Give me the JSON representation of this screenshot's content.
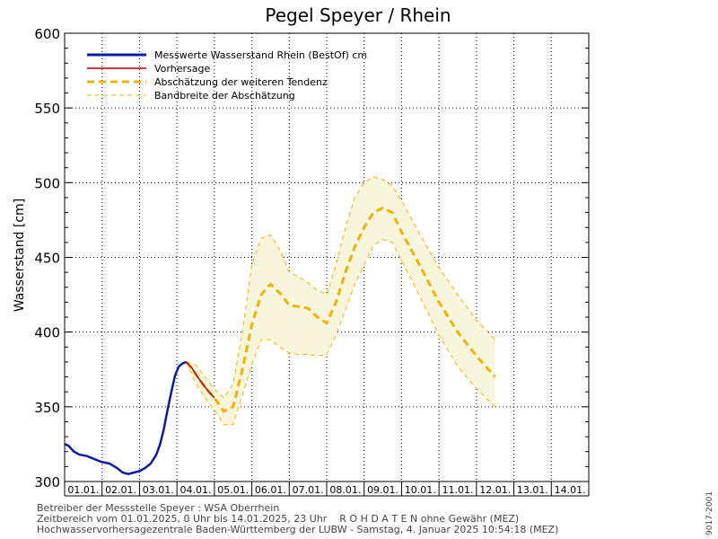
{
  "chart_data": {
    "type": "line",
    "title": "Pegel Speyer / Rhein",
    "ylabel": "Wasserstand [cm]",
    "xlabel": "",
    "ylim": [
      300,
      600
    ],
    "yticks": [
      300,
      350,
      400,
      450,
      500,
      550,
      600
    ],
    "x_range_days": [
      1.0,
      15.0
    ],
    "x_tick_labels": [
      "01.01.",
      "02.01.",
      "03.01.",
      "04.01.",
      "05.01.",
      "06.01.",
      "07.01.",
      "08.01.",
      "09.01.",
      "10.01.",
      "11.01.",
      "12.01.",
      "13.01.",
      "14.01."
    ],
    "grid": true,
    "legend_position": "top-left",
    "series": [
      {
        "name": "Messwerte Wasserstand Rhein (BestOf)  cm",
        "color": "#0a1aa8",
        "style": "solid-thick",
        "points": [
          [
            1.0,
            325
          ],
          [
            1.1,
            324
          ],
          [
            1.25,
            320
          ],
          [
            1.4,
            318
          ],
          [
            1.6,
            317
          ],
          [
            1.8,
            315
          ],
          [
            2.0,
            313
          ],
          [
            2.2,
            312
          ],
          [
            2.4,
            309
          ],
          [
            2.55,
            306
          ],
          [
            2.7,
            305
          ],
          [
            2.85,
            306
          ],
          [
            3.0,
            307
          ],
          [
            3.15,
            309
          ],
          [
            3.3,
            312
          ],
          [
            3.45,
            318
          ],
          [
            3.55,
            325
          ],
          [
            3.65,
            335
          ],
          [
            3.75,
            348
          ],
          [
            3.85,
            360
          ],
          [
            3.95,
            371
          ],
          [
            4.05,
            377
          ],
          [
            4.15,
            379
          ],
          [
            4.25,
            380
          ]
        ]
      },
      {
        "name": "Vorhersage",
        "color": "#b00000",
        "style": "solid",
        "points": [
          [
            4.25,
            380
          ],
          [
            4.4,
            376
          ],
          [
            4.55,
            370
          ],
          [
            4.7,
            365
          ],
          [
            4.85,
            360
          ],
          [
            5.0,
            356
          ]
        ]
      },
      {
        "name": "Abschätzung der weiteren Tendenz",
        "color": "#f0b400",
        "style": "dashed-thick",
        "points": [
          [
            4.25,
            380
          ],
          [
            4.5,
            372
          ],
          [
            4.75,
            363
          ],
          [
            5.0,
            356
          ],
          [
            5.25,
            347
          ],
          [
            5.5,
            350
          ],
          [
            5.75,
            375
          ],
          [
            6.0,
            405
          ],
          [
            6.25,
            425
          ],
          [
            6.5,
            432
          ],
          [
            6.75,
            426
          ],
          [
            7.0,
            418
          ],
          [
            7.25,
            417
          ],
          [
            7.5,
            416
          ],
          [
            7.75,
            410
          ],
          [
            8.0,
            406
          ],
          [
            8.25,
            420
          ],
          [
            8.5,
            440
          ],
          [
            8.75,
            457
          ],
          [
            9.0,
            470
          ],
          [
            9.25,
            480
          ],
          [
            9.5,
            483
          ],
          [
            9.75,
            480
          ],
          [
            10.0,
            467
          ],
          [
            10.5,
            444
          ],
          [
            11.0,
            420
          ],
          [
            11.5,
            400
          ],
          [
            12.0,
            384
          ],
          [
            12.5,
            370
          ]
        ]
      },
      {
        "name": "Bandbreite der Abschätzung",
        "color": "#f0b400",
        "style": "dashed-thin",
        "upper": [
          [
            4.25,
            380
          ],
          [
            4.5,
            378
          ],
          [
            4.75,
            370
          ],
          [
            5.0,
            362
          ],
          [
            5.25,
            356
          ],
          [
            5.5,
            365
          ],
          [
            5.75,
            400
          ],
          [
            6.0,
            445
          ],
          [
            6.25,
            463
          ],
          [
            6.5,
            465
          ],
          [
            6.75,
            455
          ],
          [
            7.0,
            440
          ],
          [
            7.25,
            437
          ],
          [
            7.5,
            433
          ],
          [
            7.75,
            428
          ],
          [
            8.0,
            425
          ],
          [
            8.25,
            445
          ],
          [
            8.5,
            470
          ],
          [
            8.75,
            490
          ],
          [
            9.0,
            500
          ],
          [
            9.25,
            504
          ],
          [
            9.5,
            502
          ],
          [
            9.75,
            498
          ],
          [
            10.0,
            488
          ],
          [
            10.5,
            465
          ],
          [
            11.0,
            443
          ],
          [
            11.5,
            425
          ],
          [
            12.0,
            408
          ],
          [
            12.5,
            395
          ]
        ],
        "lower": [
          [
            4.25,
            380
          ],
          [
            4.5,
            366
          ],
          [
            4.75,
            356
          ],
          [
            5.0,
            348
          ],
          [
            5.25,
            338
          ],
          [
            5.5,
            338
          ],
          [
            5.75,
            358
          ],
          [
            6.0,
            378
          ],
          [
            6.25,
            395
          ],
          [
            6.5,
            395
          ],
          [
            6.75,
            390
          ],
          [
            7.0,
            386
          ],
          [
            7.25,
            385
          ],
          [
            7.5,
            385
          ],
          [
            7.75,
            384
          ],
          [
            8.0,
            385
          ],
          [
            8.25,
            398
          ],
          [
            8.5,
            415
          ],
          [
            8.75,
            432
          ],
          [
            9.0,
            445
          ],
          [
            9.25,
            458
          ],
          [
            9.5,
            462
          ],
          [
            9.75,
            460
          ],
          [
            10.0,
            448
          ],
          [
            10.5,
            423
          ],
          [
            11.0,
            398
          ],
          [
            11.5,
            377
          ],
          [
            12.0,
            362
          ],
          [
            12.5,
            350
          ]
        ]
      }
    ]
  },
  "footer": {
    "line1": "Betreiber der Messstelle Speyer : WSA Oberrhein",
    "line2": "Zeitbereich vom 01.01.2025, 0 Uhr bis 14.01.2025, 23 Uhr    R O H D A T E N ohne Gewähr (MEZ)",
    "line3": "Hochwasservorhersagezentrale Baden-Württemberg der LUBW - Samstag, 4. Januar 2025 10:54:18 (MEZ)"
  },
  "side_code": "9017-2001"
}
